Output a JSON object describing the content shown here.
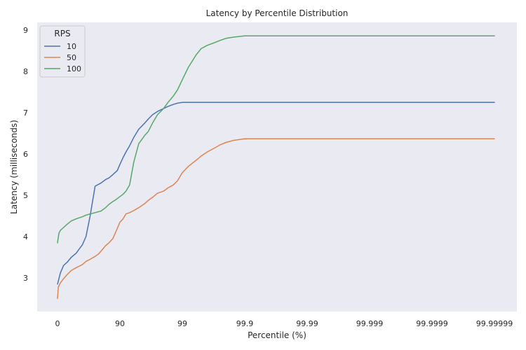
{
  "chart_data": {
    "type": "line",
    "title": "Latency by Percentile Distribution",
    "xlabel": "Percentile (%)",
    "ylabel": "Latency (milliseconds)",
    "x_scale": "inverse-percentile log (nines)",
    "x_ticks": [
      "0",
      "90",
      "99",
      "99.9",
      "99.99",
      "99.999",
      "99.9999",
      "99.99999"
    ],
    "y_ticks": [
      3,
      4,
      5,
      6,
      7,
      8,
      9
    ],
    "ylim": [
      2.2,
      9.1
    ],
    "grid": false,
    "background": "#eaeaf2",
    "legend": {
      "title": "RPS",
      "placement": "top-left",
      "entries": [
        "10",
        "50",
        "100"
      ]
    },
    "series": [
      {
        "name": "10",
        "color": "#4c72b0",
        "x": [
          0,
          10,
          20,
          30,
          40,
          50,
          55,
          60,
          65,
          70,
          75,
          80,
          83,
          85,
          87,
          88,
          89,
          90,
          91,
          92,
          93,
          94,
          95,
          96,
          96.5,
          97,
          97.5,
          98,
          98.3,
          98.6,
          98.8,
          99,
          99.9,
          99.99999
        ],
        "y": [
          2.85,
          3.12,
          3.3,
          3.38,
          3.5,
          3.6,
          3.7,
          3.8,
          4.0,
          4.5,
          5.22,
          5.3,
          5.38,
          5.42,
          5.5,
          5.55,
          5.6,
          5.75,
          5.9,
          6.05,
          6.2,
          6.4,
          6.6,
          6.75,
          6.85,
          6.95,
          7.03,
          7.1,
          7.15,
          7.2,
          7.23,
          7.25,
          7.25,
          7.25
        ]
      },
      {
        "name": "50",
        "color": "#dd8452",
        "x": [
          0,
          3,
          10,
          20,
          30,
          40,
          50,
          60,
          65,
          70,
          75,
          78,
          80,
          83,
          85,
          87,
          89,
          90,
          91,
          92,
          93,
          94,
          95,
          96,
          96.5,
          97,
          97.5,
          98,
          98.3,
          98.6,
          98.8,
          99,
          99.2,
          99.4,
          99.5,
          99.6,
          99.7,
          99.75,
          99.8,
          99.85,
          99.9,
          99.99999
        ],
        "y": [
          2.5,
          2.78,
          2.88,
          2.98,
          3.08,
          3.18,
          3.25,
          3.32,
          3.4,
          3.45,
          3.52,
          3.58,
          3.65,
          3.78,
          3.85,
          3.95,
          4.2,
          4.35,
          4.42,
          4.55,
          4.58,
          4.63,
          4.7,
          4.8,
          4.88,
          4.95,
          5.05,
          5.1,
          5.18,
          5.25,
          5.35,
          5.55,
          5.7,
          5.85,
          5.95,
          6.05,
          6.15,
          6.22,
          6.28,
          6.33,
          6.37,
          6.37
        ]
      },
      {
        "name": "100",
        "color": "#55a868",
        "x": [
          0,
          5,
          10,
          20,
          30,
          40,
          50,
          60,
          65,
          70,
          75,
          80,
          83,
          85,
          87,
          88,
          89,
          90,
          91,
          92,
          93,
          94,
          95,
          96,
          96.5,
          97,
          97.5,
          98,
          98.3,
          98.6,
          98.8,
          99,
          99.2,
          99.4,
          99.5,
          99.6,
          99.7,
          99.75,
          99.8,
          99.85,
          99.9,
          99.99999
        ],
        "y": [
          3.85,
          4.08,
          4.15,
          4.22,
          4.3,
          4.38,
          4.43,
          4.48,
          4.52,
          4.55,
          4.58,
          4.62,
          4.7,
          4.78,
          4.85,
          4.88,
          4.92,
          4.97,
          5.02,
          5.1,
          5.25,
          5.8,
          6.25,
          6.45,
          6.55,
          6.75,
          6.95,
          7.1,
          7.25,
          7.4,
          7.55,
          7.8,
          8.1,
          8.4,
          8.55,
          8.63,
          8.7,
          8.75,
          8.8,
          8.83,
          8.86,
          8.86
        ]
      }
    ]
  }
}
